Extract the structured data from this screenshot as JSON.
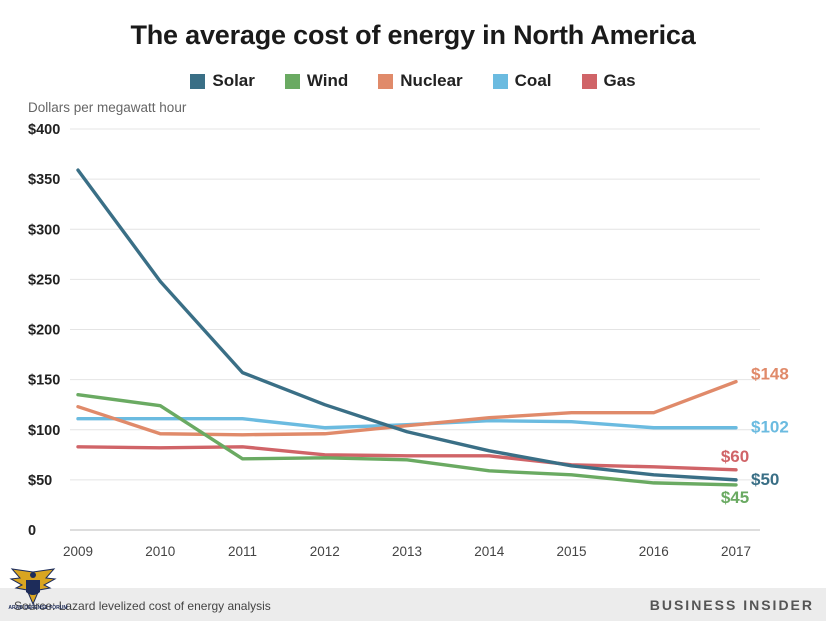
{
  "chart_data": {
    "type": "line",
    "title": "The average cost of energy in North America",
    "ylabel": "Dollars per megawatt hour",
    "xlabel": "",
    "categories": [
      "2009",
      "2010",
      "2011",
      "2012",
      "2013",
      "2014",
      "2015",
      "2016",
      "2017"
    ],
    "ylim": [
      0,
      400
    ],
    "yticks": [
      0,
      50,
      100,
      150,
      200,
      250,
      300,
      350,
      400
    ],
    "ytick_labels": [
      "0",
      "$50",
      "$100",
      "$150",
      "$200",
      "$250",
      "$300",
      "$350",
      "$400"
    ],
    "grid": true,
    "legend_position": "top-center",
    "series": [
      {
        "name": "Solar",
        "color": "#3a6f86",
        "values": [
          359,
          248,
          157,
          125,
          98,
          79,
          64,
          55,
          50
        ],
        "end_label": "$50"
      },
      {
        "name": "Wind",
        "color": "#6aaa62",
        "values": [
          135,
          124,
          71,
          72,
          70,
          59,
          55,
          47,
          45
        ],
        "end_label": "$45"
      },
      {
        "name": "Nuclear",
        "color": "#e08a6a",
        "values": [
          123,
          96,
          95,
          96,
          104,
          112,
          117,
          117,
          148
        ],
        "end_label": "$148"
      },
      {
        "name": "Coal",
        "color": "#6bbbe0",
        "values": [
          111,
          111,
          111,
          102,
          105,
          109,
          108,
          102,
          102
        ],
        "end_label": "$102"
      },
      {
        "name": "Gas",
        "color": "#d06468",
        "values": [
          83,
          82,
          83,
          75,
          74,
          74,
          65,
          63,
          60
        ],
        "end_label": "$60"
      }
    ]
  },
  "footer": {
    "source": "Source: Lazard levelized cost of energy analysis",
    "brand": "BUSINESS INSIDER"
  },
  "watermark": {
    "icon": "eagle-emblem-icon",
    "text": "ARAB DEFENSE FORUM"
  }
}
